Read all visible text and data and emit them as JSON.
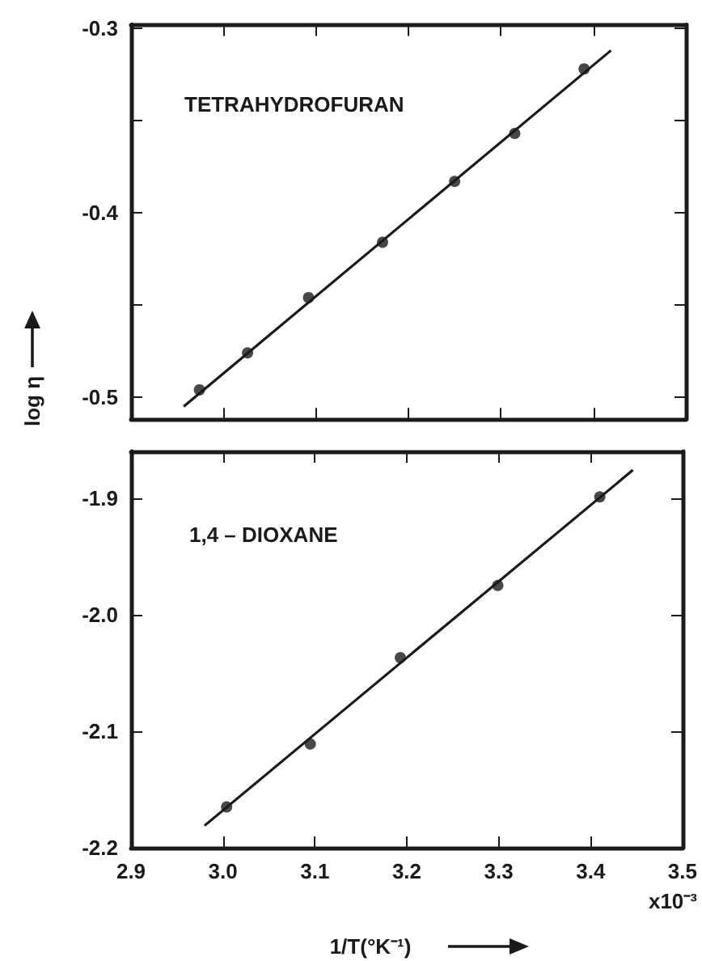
{
  "chart_data": [
    {
      "type": "scatter",
      "title": "TETRAHYDROFURAN",
      "ylabel": "log η",
      "tick_labels": "y",
      "series": [
        {
          "type": "scatter",
          "marker": "circle",
          "color": "#1a1a1a",
          "x": [
            2.974,
            3.026,
            3.092,
            3.172,
            3.25,
            3.315,
            3.39
          ],
          "values": [
            -0.496,
            -0.476,
            -0.446,
            -0.416,
            -0.383,
            -0.357,
            -0.322
          ]
        },
        {
          "type": "line",
          "marker": "none",
          "line_style": "solid",
          "color": "#1a1a1a",
          "x": [
            2.957,
            3.419
          ],
          "values": [
            -0.505,
            -0.312
          ]
        }
      ],
      "xlim": [
        2.9,
        3.5
      ],
      "xticks": [
        2.9,
        3,
        3.1,
        3.2,
        3.3,
        3.4,
        3.5
      ],
      "ylim": [
        -0.512,
        -0.298
      ],
      "yticks": [
        -0.3,
        {
          "value": -0.35,
          "label": null
        },
        -0.4,
        {
          "value": -0.45,
          "label": null
        },
        -0.5
      ]
    },
    {
      "type": "scatter",
      "title": "1,4 – DIOXANE",
      "xlabel": "1/T(°K⁻¹)",
      "annotations": [
        "x10⁻³"
      ],
      "series": [
        {
          "type": "scatter",
          "marker": "circle",
          "color": "#1a1a1a",
          "x": [
            3.004,
            3.095,
            3.193,
            3.299,
            3.41
          ],
          "values": [
            -2.165,
            -2.111,
            -2.037,
            -1.975,
            -1.899
          ]
        },
        {
          "type": "line",
          "marker": "none",
          "line_style": "solid",
          "color": "#1a1a1a",
          "x": [
            2.98,
            3.446
          ],
          "values": [
            -2.181,
            -1.876
          ]
        }
      ],
      "xlim": [
        2.9,
        3.5
      ],
      "xticks": [
        2.9,
        {
          "value": 3,
          "label": "3.0"
        },
        3.1,
        3.2,
        3.3,
        3.4,
        3.5
      ],
      "ylim": [
        -2.2,
        -1.86
      ],
      "yticks": [
        -1.9,
        {
          "value": -2,
          "label": "-2.0"
        },
        -2.1,
        -2.2
      ]
    }
  ]
}
